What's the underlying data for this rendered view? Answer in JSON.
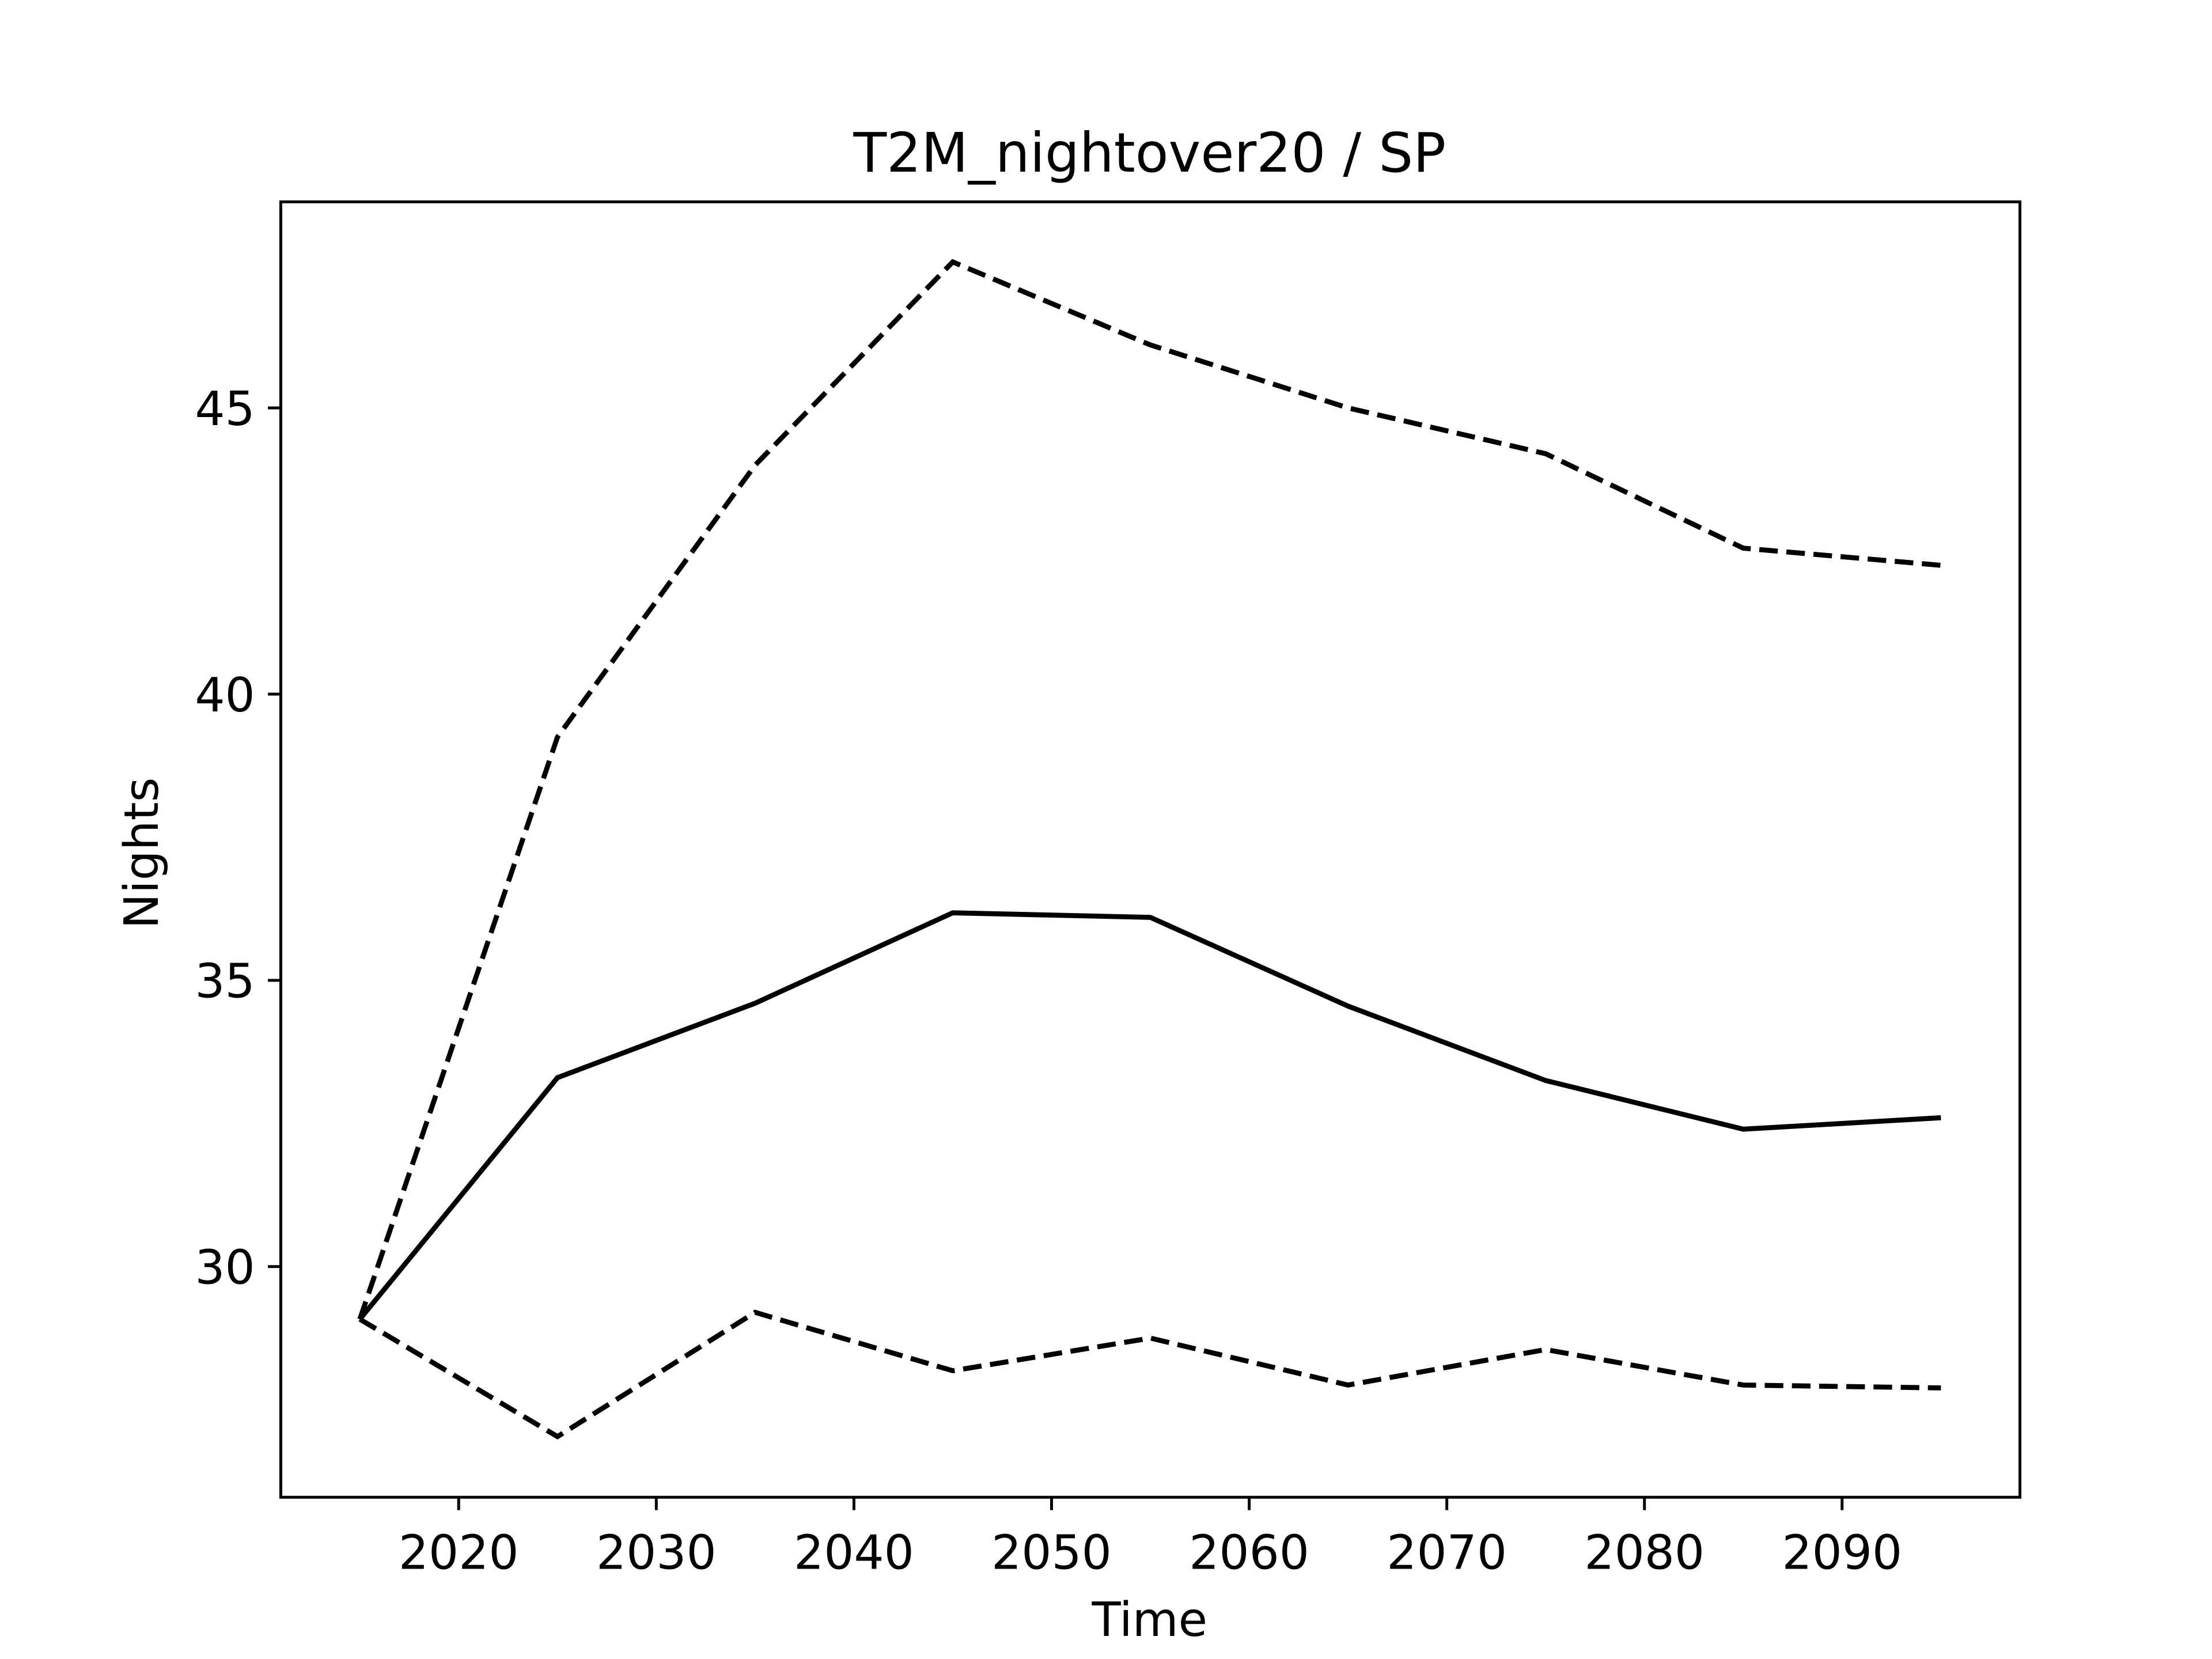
{
  "chart_data": {
    "type": "line",
    "title": "T2M_nightover20 / SP",
    "xlabel": "Time",
    "ylabel": "Nights",
    "x": [
      2015,
      2025,
      2035,
      2045,
      2055,
      2065,
      2075,
      2085,
      2095
    ],
    "series": [
      {
        "color": "#000000",
        "linestyle": "solid",
        "values": [
          29.08,
          33.3,
          34.6,
          36.18,
          36.1,
          34.55,
          33.25,
          32.4,
          32.6
        ]
      },
      {
        "color": "#000000",
        "linestyle": "dashed",
        "values": [
          29.08,
          39.25,
          44.0,
          47.55,
          46.1,
          45.0,
          44.2,
          42.55,
          42.25
        ]
      },
      {
        "color": "#000000",
        "linestyle": "dashed",
        "values": [
          29.08,
          27.03,
          29.2,
          28.18,
          28.75,
          27.93,
          28.55,
          27.93,
          27.88
        ]
      }
    ],
    "xlim": [
      2011,
      2099
    ],
    "xticks": [
      2020,
      2030,
      2040,
      2050,
      2060,
      2070,
      2080,
      2090
    ],
    "ylim": [
      25.97,
      48.6
    ],
    "yticks": [
      30,
      35,
      40,
      45
    ],
    "grid": false
  }
}
